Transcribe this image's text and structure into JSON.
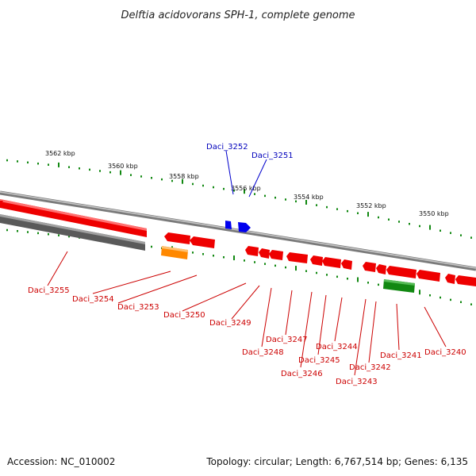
{
  "title": "Delftia acidovorans SPH-1, complete genome",
  "footer": {
    "accession": "Accession: NC_010002",
    "summary": "Topology: circular; Length: 6,767,514 bp; Genes: 6,135"
  },
  "kbp_labels": [
    "3562 kbp",
    "3560 kbp",
    "3558 kbp",
    "3556 kbp",
    "3554 kbp",
    "3552 kbp",
    "3550 kbp"
  ],
  "top_genes": [
    "Daci_3252",
    "Daci_3251"
  ],
  "bottom_genes": [
    "Daci_3255",
    "Daci_3254",
    "Daci_3253",
    "Daci_3250",
    "Daci_3249",
    "Daci_3248",
    "Daci_3247",
    "Daci_3246",
    "Daci_3245",
    "Daci_3244",
    "Daci_3243",
    "Daci_3242",
    "Daci_3241",
    "Daci_3240"
  ],
  "colors": {
    "forward_gene": "#ee0000",
    "reverse_gene": "#ee0000",
    "pseudo_gene": "#666666",
    "rna_gene": "#ff8800",
    "green_gene": "#118811",
    "blue_gene": "#0000ee",
    "tick": "#118811",
    "backbone": "#888888"
  }
}
